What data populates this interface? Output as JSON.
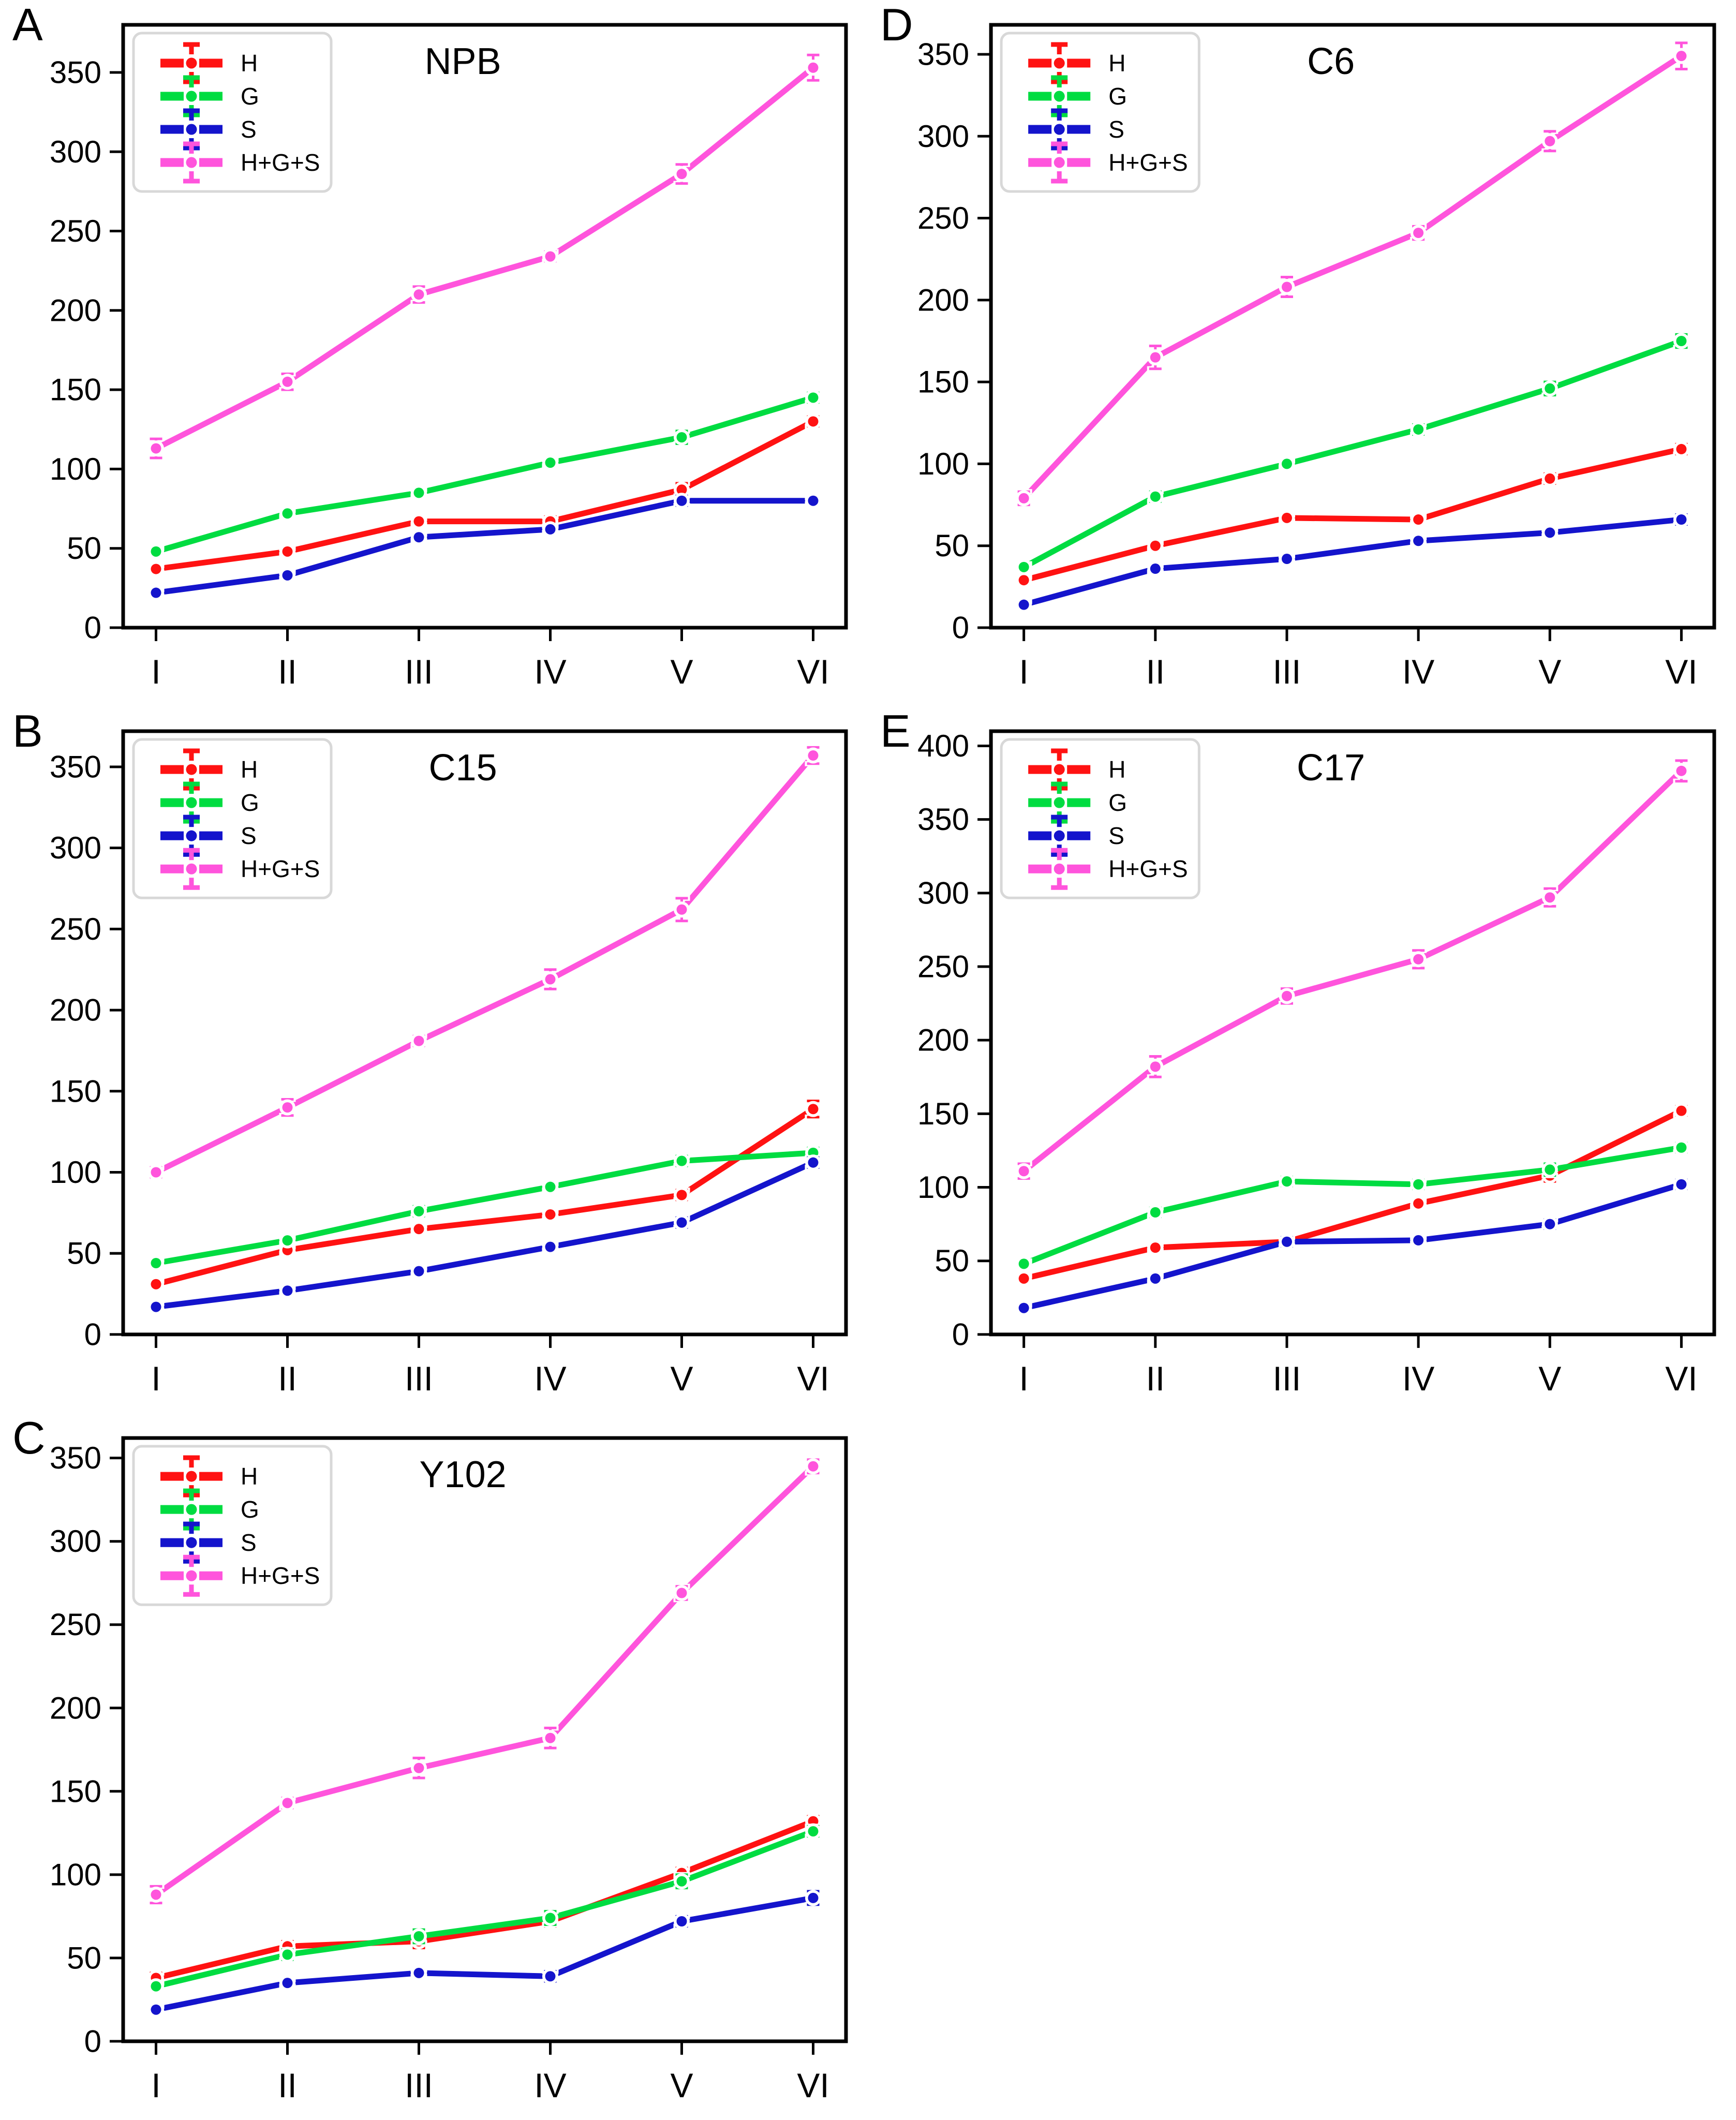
{
  "figure": {
    "background": "#ffffff",
    "panel_count": 5
  },
  "palette": {
    "H": "#ff1212",
    "G": "#00dc41",
    "S": "#1414cc",
    "H+G+S": "#ff54dc",
    "legend_border": "#d8d8d8",
    "axis": "#000000"
  },
  "legend": {
    "entries": [
      "H",
      "G",
      "S",
      "H+G+S"
    ],
    "position": "upper-left"
  },
  "chart_data": [
    {
      "type": "line",
      "panel_label": "A",
      "title": "NPB",
      "categories": [
        "I",
        "II",
        "III",
        "IV",
        "V",
        "VI"
      ],
      "xlabel": "",
      "ylabel": "",
      "ylim": [
        0,
        380
      ],
      "yticks": [
        0,
        50,
        100,
        150,
        200,
        250,
        300,
        350
      ],
      "grid": false,
      "legend_position": "upper-left",
      "series": [
        {
          "name": "H",
          "color": "#ff1212",
          "values": [
            37,
            48,
            67,
            67,
            87,
            130
          ],
          "err": [
            2,
            2,
            2,
            3,
            4,
            3
          ]
        },
        {
          "name": "G",
          "color": "#00dc41",
          "values": [
            48,
            72,
            85,
            104,
            120,
            145
          ],
          "err": [
            2,
            2,
            2,
            2,
            4,
            3
          ]
        },
        {
          "name": "S",
          "color": "#1414cc",
          "values": [
            22,
            33,
            57,
            62,
            80,
            80
          ],
          "err": [
            2,
            2,
            2,
            2,
            3,
            2
          ]
        },
        {
          "name": "H+G+S",
          "color": "#ff54dc",
          "values": [
            113,
            155,
            210,
            234,
            286,
            353
          ],
          "err": [
            6,
            5,
            5,
            3,
            6,
            8
          ]
        }
      ]
    },
    {
      "type": "line",
      "panel_label": "B",
      "title": "C15",
      "categories": [
        "I",
        "II",
        "III",
        "IV",
        "V",
        "VI"
      ],
      "xlabel": "",
      "ylabel": "",
      "ylim": [
        0,
        372
      ],
      "yticks": [
        0,
        50,
        100,
        150,
        200,
        250,
        300,
        350
      ],
      "grid": false,
      "legend_position": "upper-left",
      "series": [
        {
          "name": "H",
          "color": "#ff1212",
          "values": [
            31,
            52,
            65,
            74,
            86,
            139
          ],
          "err": [
            2,
            2,
            2,
            2,
            3,
            5
          ]
        },
        {
          "name": "G",
          "color": "#00dc41",
          "values": [
            44,
            58,
            76,
            91,
            107,
            112
          ],
          "err": [
            2,
            2,
            3,
            2,
            3,
            3
          ]
        },
        {
          "name": "S",
          "color": "#1414cc",
          "values": [
            17,
            27,
            39,
            54,
            69,
            106
          ],
          "err": [
            2,
            2,
            2,
            2,
            3,
            3
          ]
        },
        {
          "name": "H+G+S",
          "color": "#ff54dc",
          "values": [
            100,
            140,
            181,
            219,
            262,
            357
          ],
          "err": [
            3,
            5,
            3,
            6,
            7,
            5
          ]
        }
      ]
    },
    {
      "type": "line",
      "panel_label": "C",
      "title": "Y102",
      "categories": [
        "I",
        "II",
        "III",
        "IV",
        "V",
        "VI"
      ],
      "xlabel": "",
      "ylabel": "",
      "ylim": [
        0,
        362
      ],
      "yticks": [
        0,
        50,
        100,
        150,
        200,
        250,
        300,
        350
      ],
      "grid": false,
      "legend_position": "upper-left",
      "series": [
        {
          "name": "H",
          "color": "#ff1212",
          "values": [
            38,
            57,
            60,
            72,
            101,
            132
          ],
          "err": [
            3,
            3,
            4,
            3,
            3,
            3
          ]
        },
        {
          "name": "G",
          "color": "#00dc41",
          "values": [
            33,
            52,
            63,
            74,
            96,
            126
          ],
          "err": [
            2,
            3,
            4,
            4,
            4,
            3
          ]
        },
        {
          "name": "S",
          "color": "#1414cc",
          "values": [
            19,
            35,
            41,
            39,
            72,
            86
          ],
          "err": [
            2,
            2,
            2,
            3,
            3,
            4
          ]
        },
        {
          "name": "H+G+S",
          "color": "#ff54dc",
          "values": [
            88,
            143,
            164,
            182,
            269,
            345
          ],
          "err": [
            5,
            3,
            6,
            6,
            4,
            4
          ]
        }
      ]
    },
    {
      "type": "line",
      "panel_label": "D",
      "title": "C6",
      "categories": [
        "I",
        "II",
        "III",
        "IV",
        "V",
        "VI"
      ],
      "xlabel": "",
      "ylabel": "",
      "ylim": [
        0,
        368
      ],
      "yticks": [
        0,
        50,
        100,
        150,
        200,
        250,
        300,
        350
      ],
      "grid": false,
      "legend_position": "upper-left",
      "series": [
        {
          "name": "H",
          "color": "#ff1212",
          "values": [
            29,
            50,
            67,
            66,
            91,
            109
          ],
          "err": [
            2,
            2,
            2,
            2,
            3,
            3
          ]
        },
        {
          "name": "G",
          "color": "#00dc41",
          "values": [
            37,
            80,
            100,
            121,
            146,
            175
          ],
          "err": [
            2,
            3,
            2,
            3,
            4,
            4
          ]
        },
        {
          "name": "S",
          "color": "#1414cc",
          "values": [
            14,
            36,
            42,
            53,
            58,
            66
          ],
          "err": [
            2,
            2,
            2,
            2,
            2,
            3
          ]
        },
        {
          "name": "H+G+S",
          "color": "#ff54dc",
          "values": [
            79,
            165,
            208,
            241,
            297,
            349
          ],
          "err": [
            4,
            7,
            6,
            4,
            6,
            8
          ]
        }
      ]
    },
    {
      "type": "line",
      "panel_label": "E",
      "title": "C17",
      "categories": [
        "I",
        "II",
        "III",
        "IV",
        "V",
        "VI"
      ],
      "xlabel": "",
      "ylabel": "",
      "ylim": [
        0,
        410
      ],
      "yticks": [
        0,
        50,
        100,
        150,
        200,
        250,
        300,
        350,
        400
      ],
      "grid": false,
      "legend_position": "upper-left",
      "series": [
        {
          "name": "H",
          "color": "#ff1212",
          "values": [
            38,
            59,
            63,
            89,
            108,
            152
          ],
          "err": [
            2,
            2,
            2,
            2,
            4,
            3
          ]
        },
        {
          "name": "G",
          "color": "#00dc41",
          "values": [
            48,
            83,
            104,
            102,
            112,
            127
          ],
          "err": [
            2,
            3,
            3,
            3,
            4,
            3
          ]
        },
        {
          "name": "S",
          "color": "#1414cc",
          "values": [
            18,
            38,
            63,
            64,
            75,
            102
          ],
          "err": [
            2,
            2,
            3,
            2,
            3,
            3
          ]
        },
        {
          "name": "H+G+S",
          "color": "#ff54dc",
          "values": [
            111,
            182,
            230,
            255,
            297,
            383
          ],
          "err": [
            5,
            7,
            5,
            6,
            6,
            7
          ]
        }
      ]
    }
  ]
}
